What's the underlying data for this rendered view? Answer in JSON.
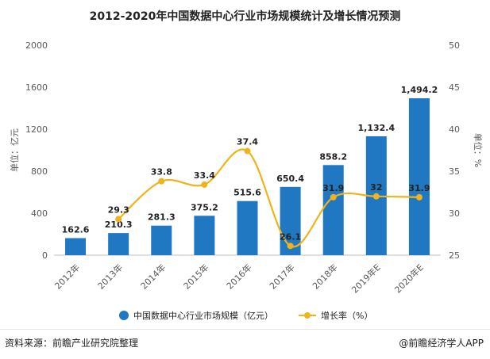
{
  "title": "2012-2020年中国数据中心行业市场规模统计及增长情况预测",
  "source": "资料来源：前瞻产业研究院整理",
  "brand": "@前瞻经济学人APP",
  "chart_data": {
    "type": "bar",
    "categories": [
      "2012年",
      "2013年",
      "2014年",
      "2015年",
      "2016年",
      "2017年",
      "2018年",
      "2019年E",
      "2020年E"
    ],
    "series": [
      {
        "name": "中国数据中心行业市场规模（亿元）",
        "type": "bar",
        "axis": "left",
        "color": "#1f78c1",
        "values": [
          162.6,
          210.3,
          281.3,
          375.2,
          515.6,
          650.4,
          858.2,
          1132.4,
          1494.2
        ],
        "labels": [
          "162.6",
          "210.3",
          "281.3",
          "375.2",
          "515.6",
          "650.4",
          "858.2",
          "1,132.4",
          "1,494.2"
        ]
      },
      {
        "name": "增长率（%）",
        "type": "line",
        "axis": "right",
        "color": "#f2b21a",
        "values": [
          null,
          29.3,
          33.8,
          33.4,
          37.4,
          26.1,
          31.9,
          32,
          31.9
        ],
        "labels": [
          "",
          "29.3",
          "33.8",
          "33.4",
          "37.4",
          "26.1",
          "31.9",
          "32",
          "31.9"
        ]
      }
    ],
    "y_left": {
      "label": "单位：亿元",
      "min": 0,
      "max": 2000,
      "ticks": [
        0,
        400,
        800,
        1200,
        1600,
        2000
      ]
    },
    "y_right": {
      "label": "单位：%",
      "min": 25,
      "max": 50,
      "ticks": [
        25,
        30,
        35,
        40,
        45,
        50
      ]
    },
    "grid": false,
    "legend": "bottom"
  }
}
